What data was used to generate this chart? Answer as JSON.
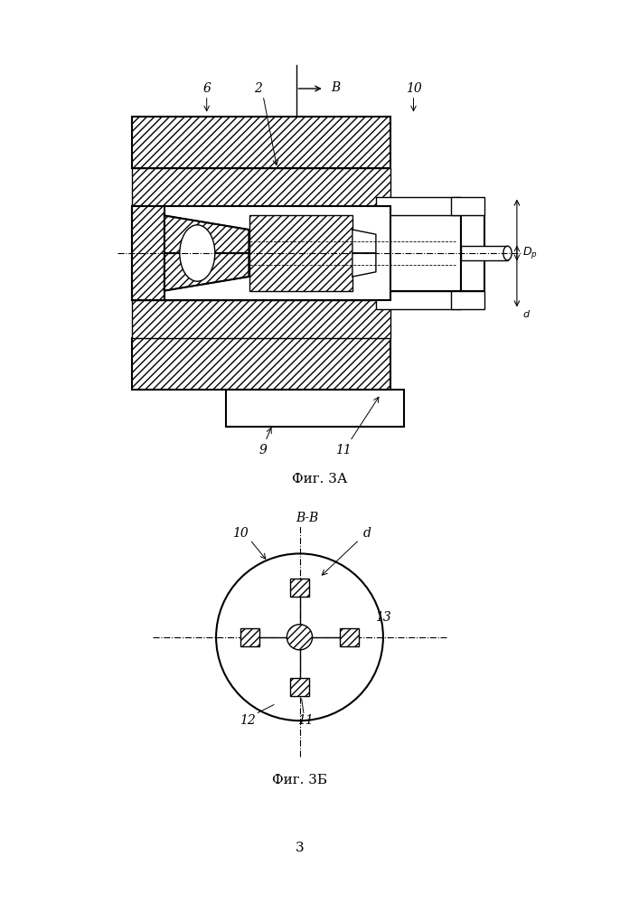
{
  "fig_caption_A": "Фиг. 3А",
  "fig_caption_B": "Фиг. 3Б",
  "page_number": "3",
  "line_color": "#000000",
  "bg_color": "#ffffff",
  "label_fontsize": 10,
  "caption_fontsize": 11
}
